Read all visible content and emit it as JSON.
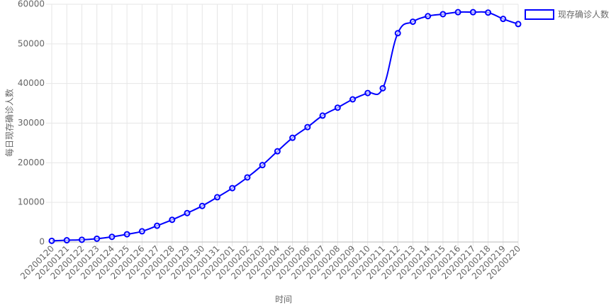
{
  "chart_data": {
    "type": "line",
    "x_label": "时间",
    "y_label": "每日现存确诊人数",
    "categories": [
      "20200120",
      "20200121",
      "20200122",
      "20200123",
      "20200124",
      "20200125",
      "20200126",
      "20200127",
      "20200128",
      "20200129",
      "20200130",
      "20200131",
      "20200201",
      "20200202",
      "20200203",
      "20200204",
      "20200205",
      "20200206",
      "20200207",
      "20200208",
      "20200209",
      "20200210",
      "20200211",
      "20200212",
      "20200213",
      "20200214",
      "20200215",
      "20200216",
      "20200217",
      "20200218",
      "20200219",
      "20200220"
    ],
    "series": [
      {
        "name": "现存确诊人数",
        "color": "#0000ff",
        "values": [
          300,
          440,
          570,
          830,
          1300,
          1950,
          2700,
          4100,
          5600,
          7300,
          9100,
          11300,
          13600,
          16300,
          19400,
          22900,
          26300,
          29000,
          31900,
          33900,
          36000,
          37600,
          38800,
          52700,
          55600,
          57000,
          57500,
          58000,
          58000,
          57900,
          56300,
          55000
        ]
      }
    ],
    "ylim": [
      0,
      60000
    ],
    "yticks": [
      0,
      10000,
      20000,
      30000,
      40000,
      50000,
      60000
    ],
    "grid": true,
    "legend": "top-right"
  }
}
